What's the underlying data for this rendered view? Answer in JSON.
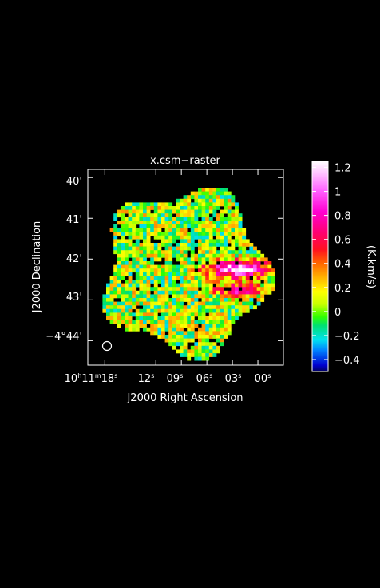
{
  "chart_data": {
    "type": "heatmap",
    "title": "x.csm−raster",
    "xlabel": "J2000 Right Ascension",
    "ylabel": "J2000 Declination",
    "x_ticks": [
      {
        "label": "10h11m18s",
        "ra_sec": 18
      },
      {
        "label": "12s",
        "ra_sec": 12
      },
      {
        "label": "09s",
        "ra_sec": 9
      },
      {
        "label": "06s",
        "ra_sec": 6
      },
      {
        "label": "03s",
        "ra_sec": 3
      },
      {
        "label": "00s",
        "ra_sec": 0
      }
    ],
    "y_ticks": [
      {
        "label": "40'",
        "dec_arcmin": -40
      },
      {
        "label": "41'",
        "dec_arcmin": -41
      },
      {
        "label": "42'",
        "dec_arcmin": -42
      },
      {
        "label": "43'",
        "dec_arcmin": -43
      },
      {
        "label": "−4°44'",
        "dec_arcmin": -44
      }
    ],
    "xlim_ra_sec": [
      20,
      -3
    ],
    "ylim_dec_arcmin": [
      -44.6,
      -39.8
    ],
    "colorbar": {
      "label": "(K.km/s)",
      "vmin": -0.5,
      "vmax": 1.25,
      "ticks": [
        "1.2",
        "1",
        "0.8",
        "0.6",
        "0.4",
        "0.2",
        "0",
        "−0.2",
        "−0.4"
      ],
      "tick_values": [
        1.2,
        1.0,
        0.8,
        0.6,
        0.4,
        0.2,
        0.0,
        -0.2,
        -0.4
      ]
    },
    "beam": "circle",
    "emission_peak": {
      "description": "bright ridge",
      "approx_value": 1.2,
      "ra_sec": 2.5,
      "dec_arcmin": -42.2
    },
    "map_center": {
      "ra_sec": 8.5,
      "dec_arcmin": -42.3
    },
    "map_radius_arcmin": 2.15,
    "typical_value_range": [
      -0.4,
      0.4
    ]
  }
}
